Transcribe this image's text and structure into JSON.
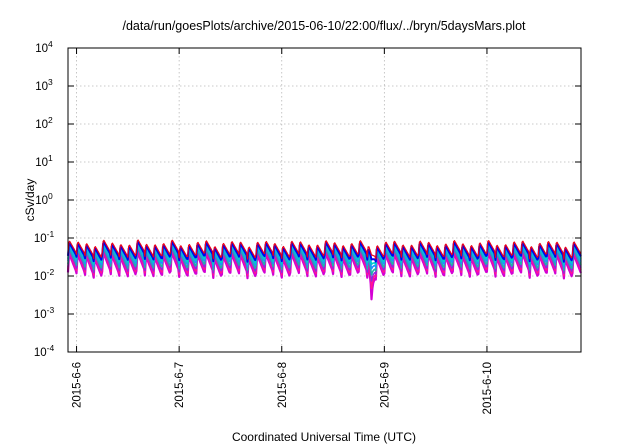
{
  "chart_data": {
    "type": "line",
    "title": "/data/run/goesPlots/archive/2015-06-10/22:00/flux/../bryn/5daysMars.plot",
    "xlabel": "Coordinated Universal Time (UTC)",
    "ylabel": "cSv/day",
    "yscale": "log",
    "ylim": [
      0.0001,
      10000
    ],
    "xlim": [
      "2015-06-05T22:00",
      "2015-06-10T22:00"
    ],
    "grid": true,
    "x_ticks": [
      {
        "date": "2015-06-06T00:00",
        "label": "2015-6-6"
      },
      {
        "date": "2015-06-07T00:00",
        "label": "2015-6-7"
      },
      {
        "date": "2015-06-08T00:00",
        "label": "2015-6-8"
      },
      {
        "date": "2015-06-09T00:00",
        "label": "2015-6-9"
      },
      {
        "date": "2015-06-10T00:00",
        "label": "2015-6-10"
      }
    ],
    "y_ticks": [
      {
        "value": 0.0001,
        "base": "10",
        "exp": "-4"
      },
      {
        "value": 0.001,
        "base": "10",
        "exp": "-3"
      },
      {
        "value": 0.01,
        "base": "10",
        "exp": "-2"
      },
      {
        "value": 0.1,
        "base": "10",
        "exp": "-1"
      },
      {
        "value": 1,
        "base": "10",
        "exp": "0"
      },
      {
        "value": 10,
        "base": "10",
        "exp": "1"
      },
      {
        "value": 100,
        "base": "10",
        "exp": "2"
      },
      {
        "value": 1000,
        "base": "10",
        "exp": "3"
      },
      {
        "value": 10000,
        "base": "10",
        "exp": "4"
      }
    ],
    "sawtooth": {
      "period_hours": 2.0,
      "dip_time": "2015-06-08T21:00",
      "dip_factor": 0.12
    },
    "series": [
      {
        "color": "#d400d4",
        "peak": 0.035,
        "trough": 0.011,
        "width": 2.2
      },
      {
        "color": "#ff1493",
        "peak": 0.04,
        "trough": 0.013,
        "width": 1.6
      },
      {
        "color": "#8a2be2",
        "peak": 0.044,
        "trough": 0.015,
        "width": 1.4
      },
      {
        "color": "#20b2aa",
        "peak": 0.048,
        "trough": 0.018,
        "width": 1.6
      },
      {
        "color": "#1e90ff",
        "peak": 0.055,
        "trough": 0.022,
        "width": 1.6
      },
      {
        "color": "#00cdcd",
        "peak": 0.06,
        "trough": 0.025,
        "width": 1.6
      },
      {
        "color": "#0000ee",
        "peak": 0.068,
        "trough": 0.03,
        "width": 2.0
      },
      {
        "color": "#e8001c",
        "peak": 0.078,
        "trough": 0.035,
        "width": 1.2
      }
    ]
  }
}
